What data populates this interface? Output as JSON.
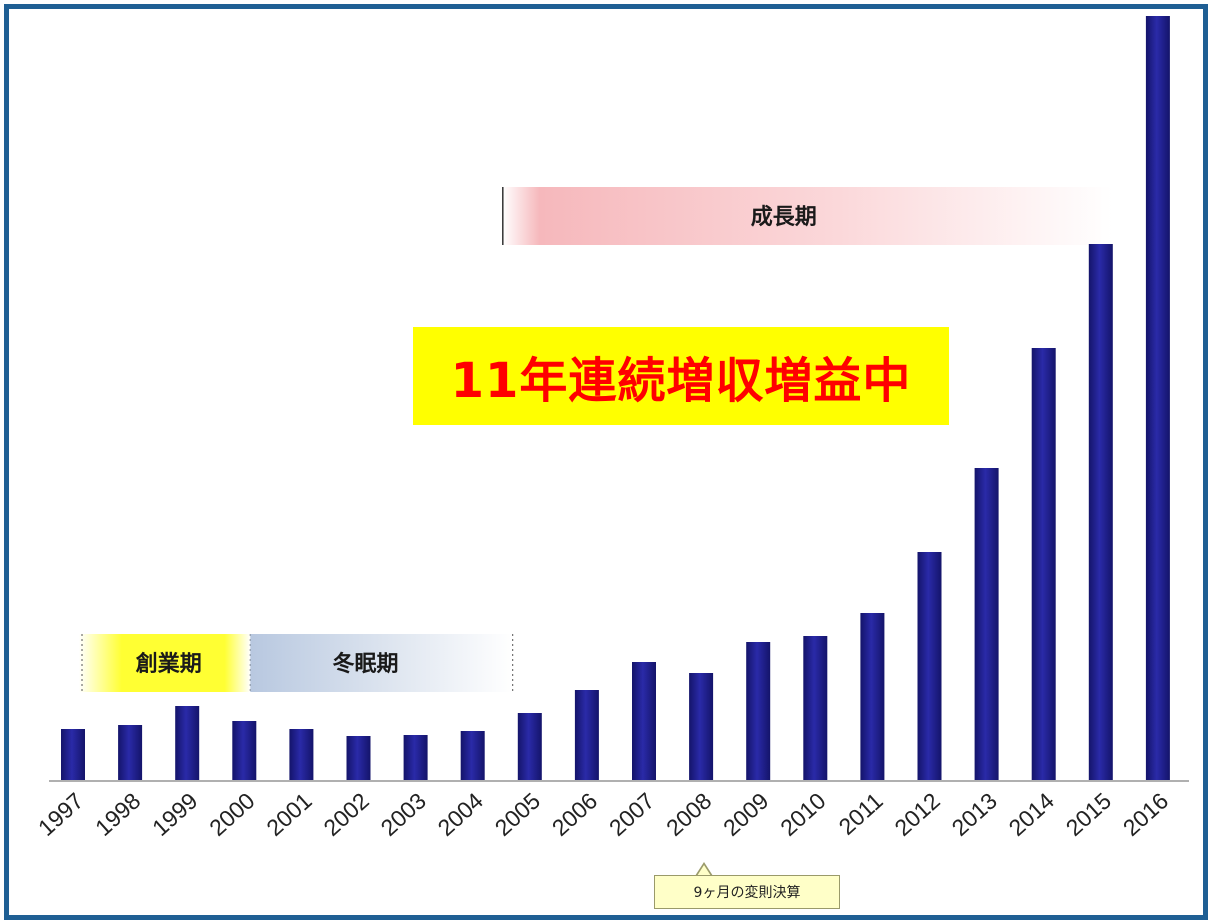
{
  "colors": {
    "frame": "#1f5f94",
    "bar": "#1c1c8c",
    "headline_bg": "#ffff00",
    "headline_text": "#ff0000",
    "founding_band": "#ffff33",
    "dormant_band": "#b8c8e0",
    "growth_band": "#f6a8ae"
  },
  "chart_data": {
    "type": "bar",
    "categories": [
      "1997",
      "1998",
      "1999",
      "2000",
      "2001",
      "2002",
      "2003",
      "2004",
      "2005",
      "2006",
      "2007",
      "2008",
      "2009",
      "2010",
      "2011",
      "2012",
      "2013",
      "2014",
      "2015",
      "2016"
    ],
    "values": [
      52,
      56,
      75,
      60,
      52,
      45,
      46,
      50,
      68,
      91,
      119,
      108,
      139,
      145,
      168,
      229,
      313,
      433,
      537,
      765
    ],
    "ylim": [
      0,
      765
    ],
    "grid": false,
    "title": "",
    "xlabel": "",
    "ylabel": "",
    "annotations": {
      "headline": "11年連続増収増益中",
      "periods": [
        {
          "label": "創業期",
          "start": "1997",
          "end": "2000",
          "color": "founding_band"
        },
        {
          "label": "冬眠期",
          "start": "2000",
          "end": "2004",
          "color": "dormant_band"
        },
        {
          "label": "成長期",
          "start": "2005",
          "end": "2015",
          "color": "growth_band"
        }
      ],
      "note": {
        "text": "9ヶ月の変則決算",
        "category": "2008"
      }
    }
  }
}
